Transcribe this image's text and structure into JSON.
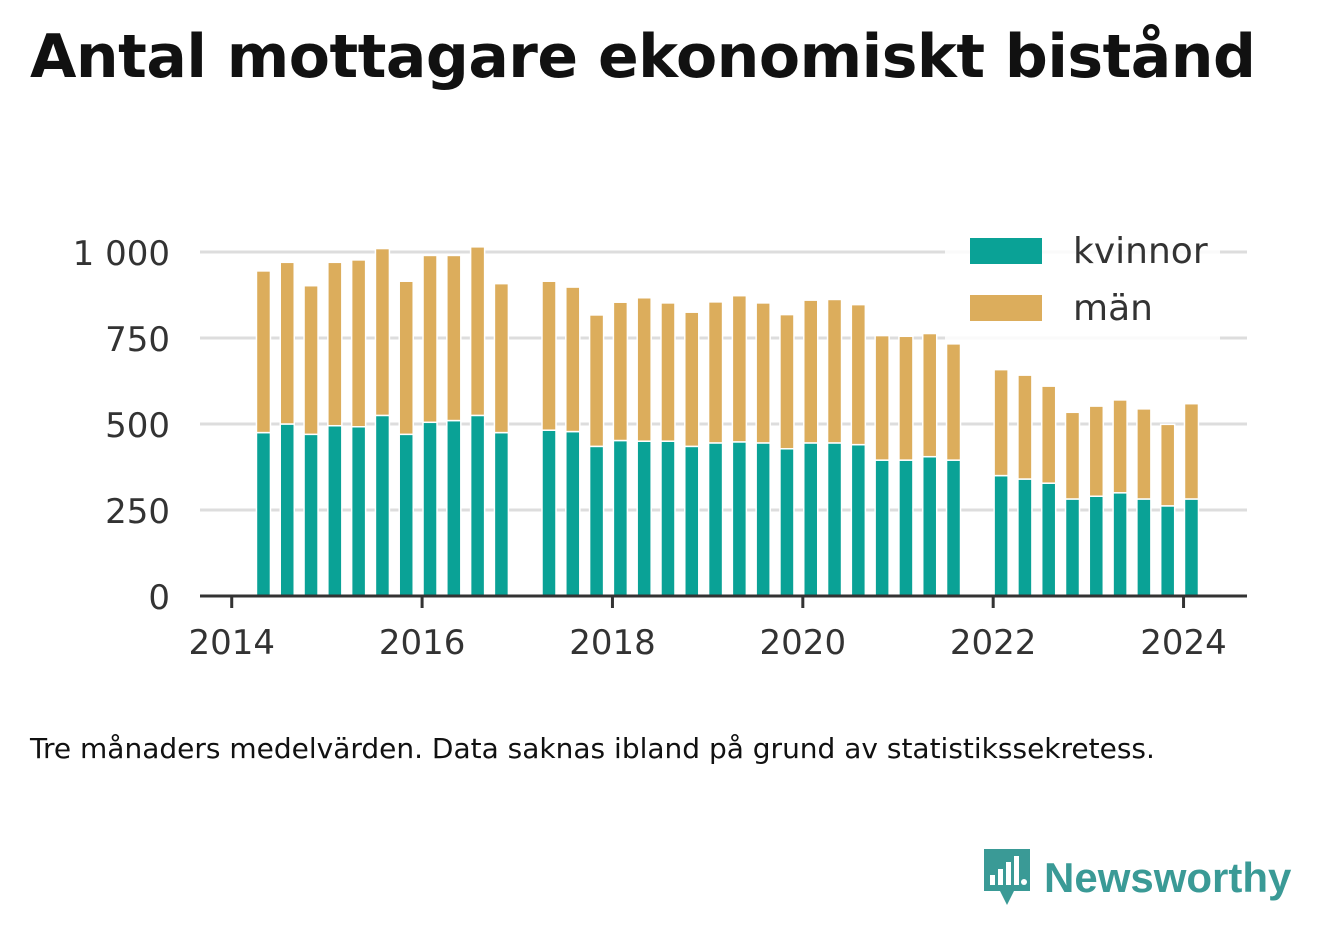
{
  "chart_data": {
    "type": "bar",
    "stacked": true,
    "title": "Antal mottagare ekonomiskt bistånd",
    "note": "Tre månaders medelvärden. Data saknas ibland på grund av statistikssekretess.",
    "brand": "Newsworthy",
    "y_ticks": [
      {
        "value": 0,
        "label": "0"
      },
      {
        "value": 250,
        "label": "250"
      },
      {
        "value": 500,
        "label": "500"
      },
      {
        "value": 750,
        "label": "750"
      },
      {
        "value": 1000,
        "label": "1 000"
      }
    ],
    "x_ticks": [
      "2014",
      "2016",
      "2018",
      "2020",
      "2022",
      "2024"
    ],
    "ylim": [
      0,
      1000
    ],
    "xlim": [
      "2013-09",
      "2024-09"
    ],
    "legend_position": "top-right",
    "grid": true,
    "x": [
      "2014-05",
      "2014-08",
      "2014-11",
      "2015-02",
      "2015-05",
      "2015-08",
      "2015-11",
      "2016-02",
      "2016-05",
      "2016-08",
      "2016-11",
      "2017-05",
      "2017-08",
      "2017-11",
      "2018-02",
      "2018-05",
      "2018-08",
      "2018-11",
      "2019-02",
      "2019-05",
      "2019-08",
      "2019-11",
      "2020-02",
      "2020-05",
      "2020-08",
      "2020-11",
      "2021-02",
      "2021-05",
      "2021-08",
      "2022-02",
      "2022-05",
      "2022-08",
      "2022-11",
      "2023-02",
      "2023-05",
      "2023-08",
      "2023-11",
      "2024-02"
    ],
    "series": [
      {
        "name": "kvinnor",
        "color": "#0aa296",
        "values": [
          475,
          500,
          470,
          495,
          492,
          525,
          470,
          505,
          510,
          525,
          475,
          482,
          478,
          435,
          452,
          450,
          450,
          435,
          445,
          448,
          445,
          428,
          445,
          445,
          440,
          395,
          395,
          405,
          395,
          350,
          340,
          328,
          282,
          290,
          300,
          282,
          262,
          282
        ]
      },
      {
        "name": "män",
        "color": "#dcad5c",
        "values": [
          470,
          470,
          432,
          475,
          485,
          485,
          445,
          485,
          480,
          490,
          433,
          433,
          420,
          382,
          402,
          417,
          402,
          390,
          410,
          425,
          407,
          390,
          415,
          417,
          407,
          362,
          360,
          358,
          338,
          308,
          302,
          282,
          252,
          262,
          270,
          262,
          237,
          277
        ]
      }
    ]
  }
}
